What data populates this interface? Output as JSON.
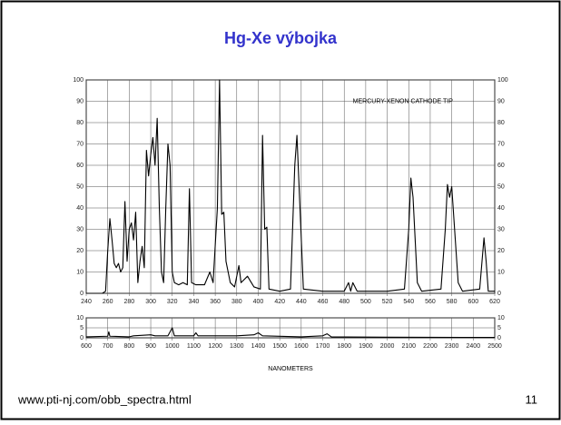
{
  "slide": {
    "title": "Hg-Xe výbojka",
    "footer": "www.pti-nj.com/obb_spectra.html",
    "page_number": 11
  },
  "chart_data": [
    {
      "type": "line",
      "annotation": "MERCURY-XENON CATHODE TIP",
      "color": "#000000",
      "grid": true,
      "x": [
        240,
        255,
        258,
        260,
        262,
        264,
        266,
        268,
        270,
        272,
        274,
        276,
        278,
        280,
        282,
        284,
        286,
        288,
        290,
        292,
        294,
        296,
        298,
        300,
        302,
        304,
        306,
        308,
        310,
        312,
        314,
        316,
        318,
        320,
        322,
        326,
        330,
        334,
        336,
        338,
        342,
        350,
        355,
        358,
        362,
        364,
        366,
        368,
        370,
        374,
        378,
        382,
        384,
        390,
        396,
        402,
        404,
        406,
        408,
        410,
        420,
        430,
        434,
        436,
        438,
        442,
        460,
        480,
        484,
        486,
        488,
        492,
        520,
        536,
        540,
        542,
        544,
        548,
        552,
        570,
        574,
        576,
        578,
        580,
        582,
        586,
        590,
        606,
        610,
        612,
        614,
        620
      ],
      "values": [
        0,
        0,
        1,
        20,
        35,
        25,
        14,
        12,
        14,
        10,
        12,
        43,
        15,
        30,
        33,
        25,
        38,
        5,
        15,
        22,
        12,
        67,
        55,
        65,
        73,
        60,
        82,
        40,
        10,
        5,
        40,
        70,
        60,
        10,
        5,
        4,
        5,
        4,
        49,
        5,
        4,
        4,
        10,
        5,
        40,
        100,
        37,
        38,
        15,
        5,
        3,
        13,
        5,
        8,
        3,
        2,
        74,
        30,
        31,
        2,
        1,
        2,
        60,
        74,
        50,
        2,
        1,
        1,
        5,
        1,
        5,
        1,
        1,
        2,
        30,
        54,
        45,
        5,
        1,
        2,
        30,
        51,
        45,
        50,
        35,
        5,
        1,
        2,
        26,
        15,
        1,
        1
      ],
      "xlim": [
        240,
        620
      ],
      "ylim": [
        0,
        100
      ],
      "xticks": [
        240,
        260,
        280,
        300,
        320,
        340,
        360,
        380,
        400,
        420,
        440,
        460,
        480,
        500,
        520,
        540,
        560,
        580,
        600,
        620
      ],
      "yticks": [
        0,
        10,
        20,
        30,
        40,
        50,
        60,
        70,
        80,
        90,
        100
      ]
    },
    {
      "type": "line",
      "x_label": "NANOMETERS",
      "color": "#000000",
      "grid": true,
      "x": [
        600,
        700,
        705,
        710,
        800,
        820,
        900,
        920,
        980,
        1000,
        1010,
        1100,
        1110,
        1120,
        1300,
        1380,
        1400,
        1420,
        1600,
        1700,
        1720,
        1740,
        2000,
        2500
      ],
      "values": [
        0.5,
        0.8,
        3,
        0.8,
        0.5,
        1,
        1.5,
        1,
        1,
        5,
        1,
        1,
        2.5,
        1,
        1,
        1.5,
        2.5,
        1,
        0.5,
        1,
        2,
        0.5,
        0.3,
        0.2
      ],
      "xlim": [
        600,
        2500
      ],
      "ylim": [
        0,
        10
      ],
      "xticks": [
        600,
        700,
        800,
        900,
        1000,
        1100,
        1200,
        1300,
        1400,
        1500,
        1600,
        1700,
        1800,
        1900,
        2000,
        2100,
        2200,
        2300,
        2400,
        2500
      ],
      "yticks": [
        0,
        5,
        10
      ]
    }
  ]
}
